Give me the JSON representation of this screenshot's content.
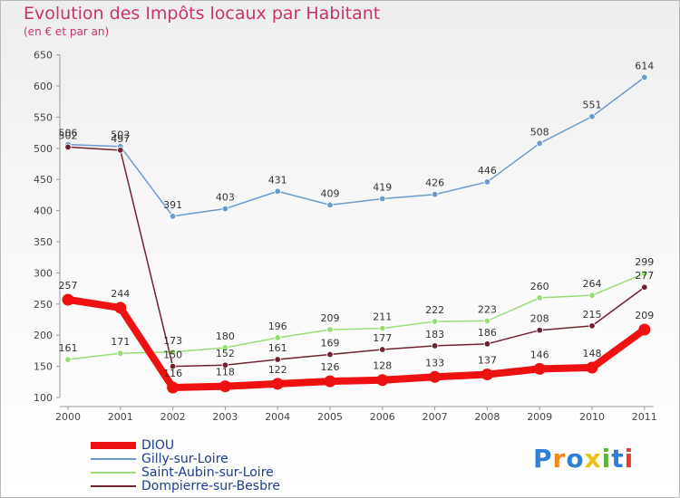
{
  "title": "Evolution des Impôts locaux par Habitant",
  "subtitle": "(en € et par an)",
  "logo": "Proxiti",
  "chart_data": {
    "type": "line",
    "x": [
      "2000",
      "2001",
      "2002",
      "2003",
      "2004",
      "2005",
      "2006",
      "2007",
      "2008",
      "2009",
      "2010",
      "2011"
    ],
    "ylim": [
      100,
      650
    ],
    "yticks": [
      100,
      150,
      200,
      250,
      300,
      350,
      400,
      450,
      500,
      550,
      600,
      650
    ],
    "grid": false,
    "legend_position": "bottom-left",
    "series": [
      {
        "name": "DIOU",
        "color": "#ee1111",
        "values": [
          257,
          244,
          116,
          118,
          122,
          126,
          128,
          133,
          137,
          146,
          148,
          209
        ]
      },
      {
        "name": "Gilly-sur-Loire",
        "color": "#6b9bcf",
        "values": [
          506,
          503,
          391,
          403,
          431,
          409,
          419,
          426,
          446,
          508,
          551,
          614
        ]
      },
      {
        "name": "Saint-Aubin-sur-Loire",
        "color": "#99dd77",
        "values": [
          161,
          171,
          173,
          180,
          196,
          209,
          211,
          222,
          223,
          260,
          264,
          299
        ]
      },
      {
        "name": "Dompierre-sur-Besbre",
        "color": "#6e2430",
        "values": [
          502,
          497,
          150,
          152,
          161,
          169,
          177,
          183,
          186,
          208,
          215,
          277
        ]
      }
    ]
  }
}
